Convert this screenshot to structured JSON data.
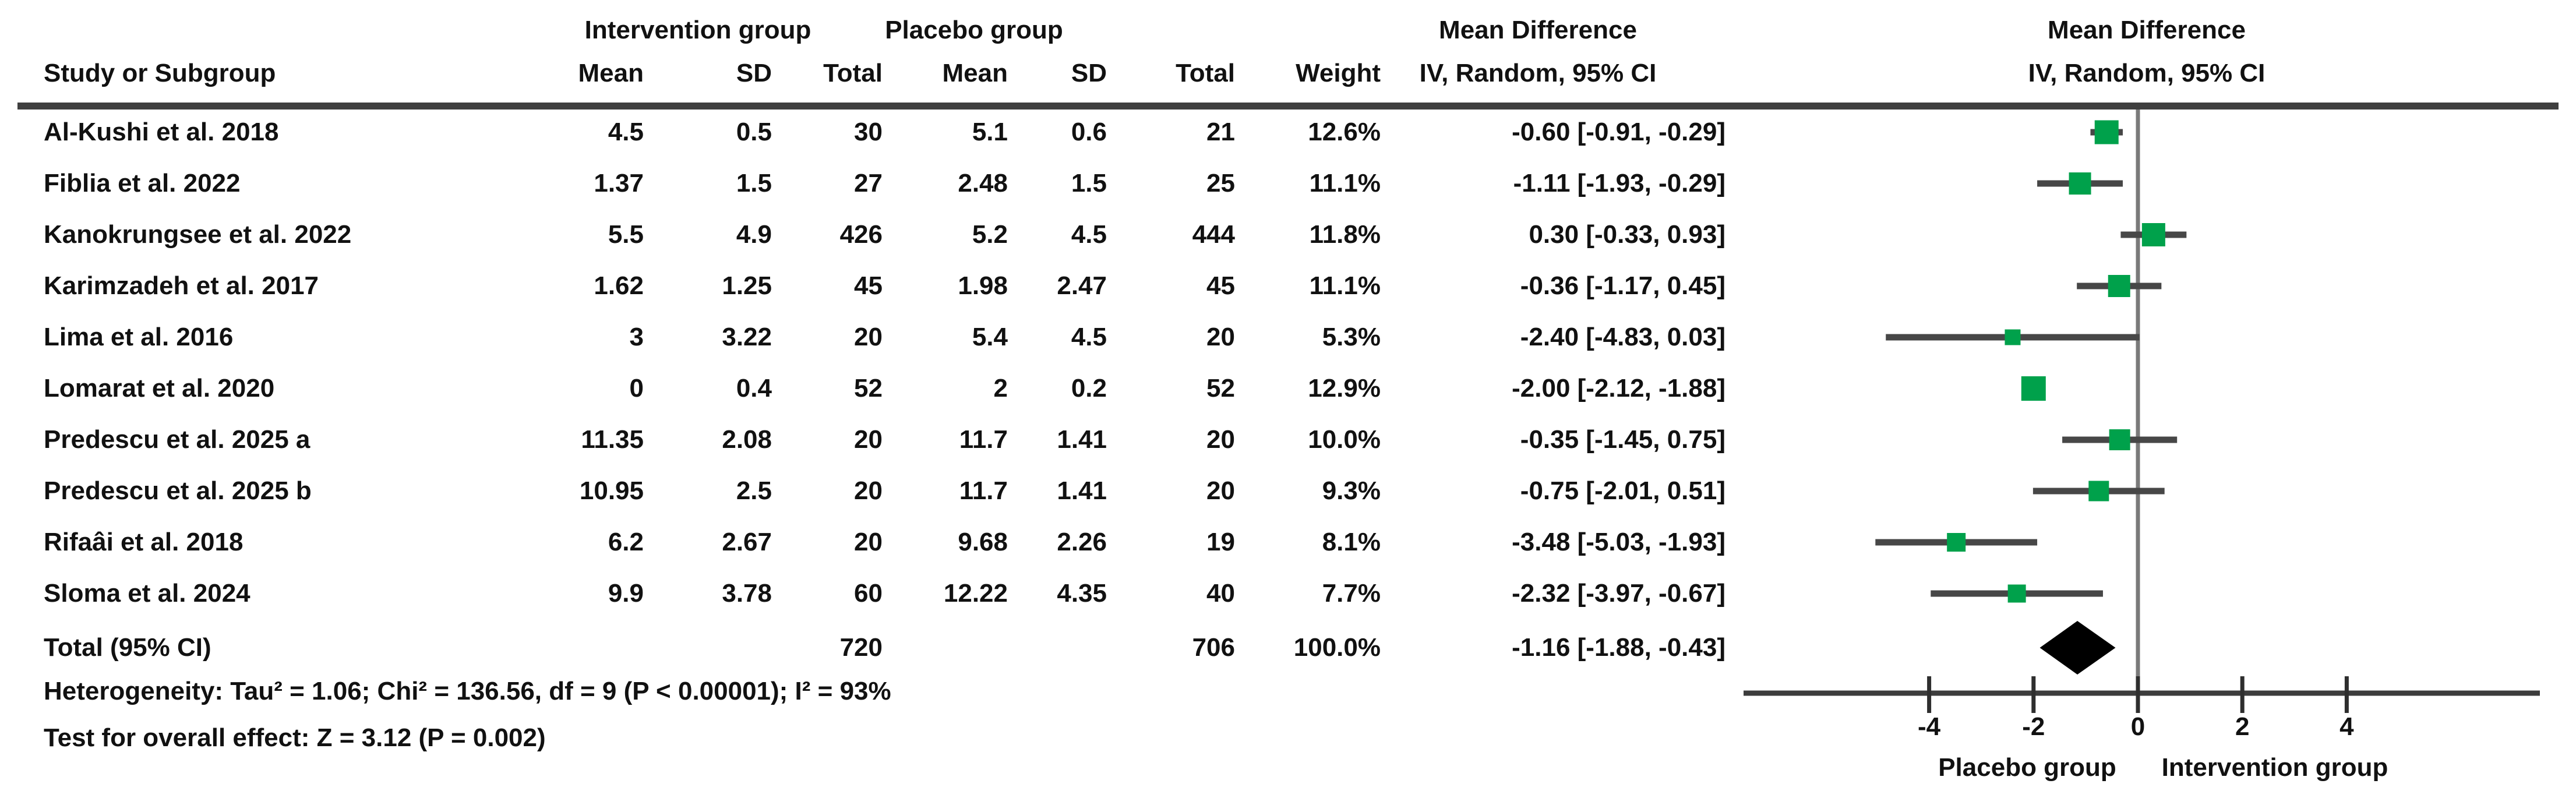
{
  "table": {
    "group1_header": "Intervention group",
    "group2_header": "Placebo group",
    "md_header_text_col": "Mean Difference",
    "md_header_plot_col": "Mean Difference",
    "study_col": "Study or Subgroup",
    "mean1": "Mean",
    "sd1": "SD",
    "total1": "Total",
    "mean2": "Mean",
    "sd2": "SD",
    "total2": "Total",
    "weight_col": "Weight",
    "ci_col_text": "IV, Random, 95% CI",
    "ci_col_plot": "IV, Random, 95% CI"
  },
  "rows": [
    {
      "name": "Al-Kushi et al. 2018",
      "i_mean": "4.5",
      "i_sd": "0.5",
      "i_total": "30",
      "p_mean": "5.1",
      "p_sd": "0.6",
      "p_total": "21",
      "weight": "12.6%",
      "ci": "-0.60 [-0.91, -0.29]"
    },
    {
      "name": "Fiblia et al. 2022",
      "i_mean": "1.37",
      "i_sd": "1.5",
      "i_total": "27",
      "p_mean": "2.48",
      "p_sd": "1.5",
      "p_total": "25",
      "weight": "11.1%",
      "ci": "-1.11 [-1.93, -0.29]"
    },
    {
      "name": "Kanokrungsee et al. 2022",
      "i_mean": "5.5",
      "i_sd": "4.9",
      "i_total": "426",
      "p_mean": "5.2",
      "p_sd": "4.5",
      "p_total": "444",
      "weight": "11.8%",
      "ci": "0.30 [-0.33, 0.93]"
    },
    {
      "name": "Karimzadeh et al. 2017",
      "i_mean": "1.62",
      "i_sd": "1.25",
      "i_total": "45",
      "p_mean": "1.98",
      "p_sd": "2.47",
      "p_total": "45",
      "weight": "11.1%",
      "ci": "-0.36 [-1.17, 0.45]"
    },
    {
      "name": "Lima et al. 2016",
      "i_mean": "3",
      "i_sd": "3.22",
      "i_total": "20",
      "p_mean": "5.4",
      "p_sd": "4.5",
      "p_total": "20",
      "weight": "5.3%",
      "ci": "-2.40 [-4.83, 0.03]"
    },
    {
      "name": "Lomarat et al. 2020",
      "i_mean": "0",
      "i_sd": "0.4",
      "i_total": "52",
      "p_mean": "2",
      "p_sd": "0.2",
      "p_total": "52",
      "weight": "12.9%",
      "ci": "-2.00 [-2.12, -1.88]"
    },
    {
      "name": "Predescu et al. 2025 a",
      "i_mean": "11.35",
      "i_sd": "2.08",
      "i_total": "20",
      "p_mean": "11.7",
      "p_sd": "1.41",
      "p_total": "20",
      "weight": "10.0%",
      "ci": "-0.35 [-1.45, 0.75]"
    },
    {
      "name": "Predescu et al. 2025 b",
      "i_mean": "10.95",
      "i_sd": "2.5",
      "i_total": "20",
      "p_mean": "11.7",
      "p_sd": "1.41",
      "p_total": "20",
      "weight": "9.3%",
      "ci": "-0.75 [-2.01, 0.51]"
    },
    {
      "name": "Rifaâi et al. 2018",
      "i_mean": "6.2",
      "i_sd": "2.67",
      "i_total": "20",
      "p_mean": "9.68",
      "p_sd": "2.26",
      "p_total": "19",
      "weight": "8.1%",
      "ci": "-3.48 [-5.03, -1.93]"
    },
    {
      "name": "Sloma et al. 2024",
      "i_mean": "9.9",
      "i_sd": "3.78",
      "i_total": "60",
      "p_mean": "12.22",
      "p_sd": "4.35",
      "p_total": "40",
      "weight": "7.7%",
      "ci": "-2.32 [-3.97, -0.67]"
    }
  ],
  "total": {
    "label": "Total (95% CI)",
    "i_total": "720",
    "p_total": "706",
    "weight": "100.0%",
    "ci": "-1.16 [-1.88, -0.43]"
  },
  "footer": {
    "heterogeneity": "Heterogeneity: Tau² = 1.06; Chi² = 136.56, df = 9 (P < 0.00001); I² = 93%",
    "overall_effect": "Test for overall effect: Z = 3.12 (P = 0.002)"
  },
  "chart_data": {
    "type": "forest",
    "effect_measure": "Mean Difference, IV, Random, 95% CI",
    "x_ticks": [
      -4,
      -2,
      0,
      2,
      4
    ],
    "x_axis_range": [
      -7.5,
      7.7
    ],
    "zero_line": 0,
    "left_direction_label": "Placebo group",
    "right_direction_label": "Intervention group",
    "studies": [
      {
        "name": "Al-Kushi et al. 2018",
        "md": -0.6,
        "ci_low": -0.91,
        "ci_high": -0.29,
        "weight_pct": 12.6
      },
      {
        "name": "Fiblia et al. 2022",
        "md": -1.11,
        "ci_low": -1.93,
        "ci_high": -0.29,
        "weight_pct": 11.1
      },
      {
        "name": "Kanokrungsee et al. 2022",
        "md": 0.3,
        "ci_low": -0.33,
        "ci_high": 0.93,
        "weight_pct": 11.8
      },
      {
        "name": "Karimzadeh et al. 2017",
        "md": -0.36,
        "ci_low": -1.17,
        "ci_high": 0.45,
        "weight_pct": 11.1
      },
      {
        "name": "Lima et al. 2016",
        "md": -2.4,
        "ci_low": -4.83,
        "ci_high": 0.03,
        "weight_pct": 5.3
      },
      {
        "name": "Lomarat et al. 2020",
        "md": -2.0,
        "ci_low": -2.12,
        "ci_high": -1.88,
        "weight_pct": 12.9
      },
      {
        "name": "Predescu et al. 2025 a",
        "md": -0.35,
        "ci_low": -1.45,
        "ci_high": 0.75,
        "weight_pct": 10.0
      },
      {
        "name": "Predescu et al. 2025 b",
        "md": -0.75,
        "ci_low": -2.01,
        "ci_high": 0.51,
        "weight_pct": 9.3
      },
      {
        "name": "Rifaâi et al. 2018",
        "md": -3.48,
        "ci_low": -5.03,
        "ci_high": -1.93,
        "weight_pct": 8.1
      },
      {
        "name": "Sloma et al. 2024",
        "md": -2.32,
        "ci_low": -3.97,
        "ci_high": -0.67,
        "weight_pct": 7.7
      }
    ],
    "total": {
      "label": "Total (95% CI)",
      "md": -1.16,
      "ci_low": -1.88,
      "ci_high": -0.43,
      "weight_pct": 100.0
    },
    "colors": {
      "marker_green": "#00A14B",
      "diamond_black": "#000000",
      "ci_line": "#474747",
      "zero_line": "#7a7a7a",
      "axis_line": "#3c3c3c",
      "text": "#111111"
    }
  }
}
